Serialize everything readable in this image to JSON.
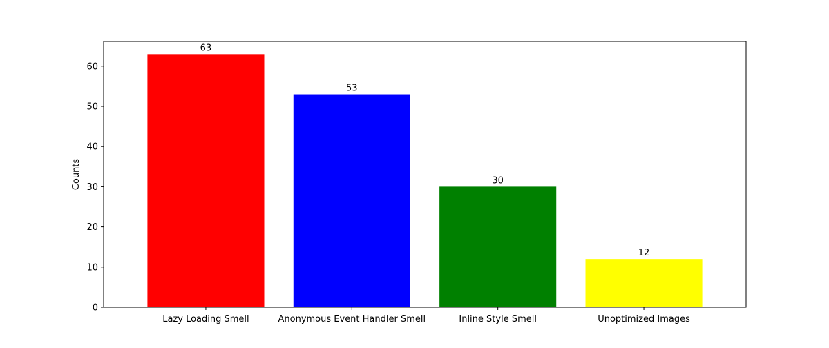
{
  "chart_data": {
    "type": "bar",
    "title": "",
    "xlabel": "",
    "ylabel": "Counts",
    "categories": [
      "Lazy Loading Smell",
      "Anonymous Event Handler Smell",
      "Inline Style Smell",
      "Unoptimized Images"
    ],
    "values": [
      63,
      53,
      30,
      12
    ],
    "colors": [
      "#ff0000",
      "#0000ff",
      "#008000",
      "#ffff00"
    ],
    "data_labels": [
      "63",
      "53",
      "30",
      "12"
    ],
    "yticks": [
      0,
      10,
      20,
      30,
      40,
      50,
      60
    ],
    "ylim": [
      0,
      66.15
    ],
    "grid": false,
    "legend": false
  }
}
